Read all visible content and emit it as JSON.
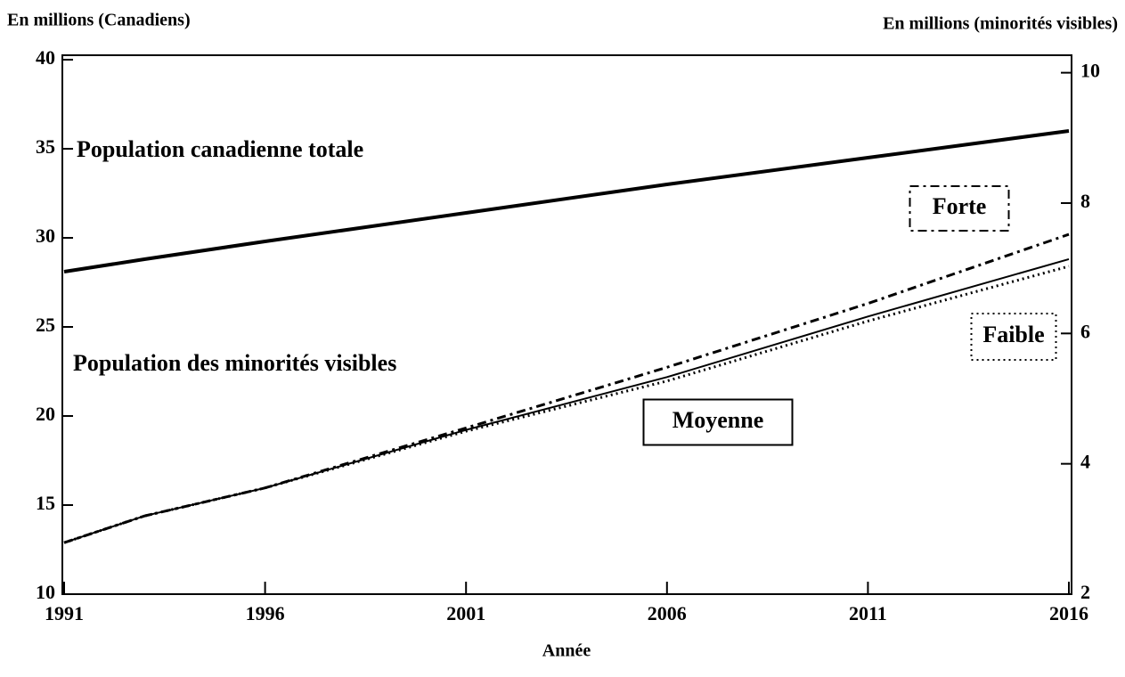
{
  "chart_data": {
    "type": "line",
    "y_label": "En millions (Canadiens)",
    "y2_label": "En millions (minorités visibles)",
    "x_label": "Année",
    "annotations": [
      "Population des minorités visibles"
    ],
    "x": [
      1991,
      1993,
      1996,
      2001,
      2006,
      2011,
      2016
    ],
    "series": [
      {
        "name": "Population canadienne totale",
        "color": "#000000",
        "axis": "y",
        "line_style": "solid",
        "line_width": 4,
        "values": [
          28.1,
          28.8,
          29.8,
          31.4,
          33.0,
          34.5,
          36.0
        ]
      },
      {
        "name": "Forte",
        "color": "#000000",
        "axis": "y2",
        "line_style": "dashdot",
        "line_width": 3,
        "values": [
          2.79,
          3.2,
          3.63,
          4.55,
          5.48,
          6.46,
          7.52
        ]
      },
      {
        "name": "Moyenne",
        "color": "#000000",
        "axis": "y2",
        "line_style": "solid",
        "line_width": 2,
        "values": [
          2.79,
          3.2,
          3.63,
          4.52,
          5.33,
          6.26,
          7.14
        ]
      },
      {
        "name": "Faible",
        "color": "#000000",
        "axis": "y2",
        "line_style": "dotted",
        "line_width": 3,
        "values": [
          2.79,
          3.2,
          3.63,
          4.5,
          5.27,
          6.19,
          7.03
        ]
      }
    ],
    "xlim": [
      1991,
      2016
    ],
    "xticks": [
      1991,
      1996,
      2001,
      2006,
      2011,
      2016
    ],
    "ylim": [
      10,
      40
    ],
    "yticks": [
      10,
      15,
      20,
      25,
      30,
      35,
      40
    ],
    "y2lim": [
      2,
      10.2
    ],
    "y2ticks": [
      2,
      4,
      6,
      8,
      10
    ],
    "grid": false
  }
}
